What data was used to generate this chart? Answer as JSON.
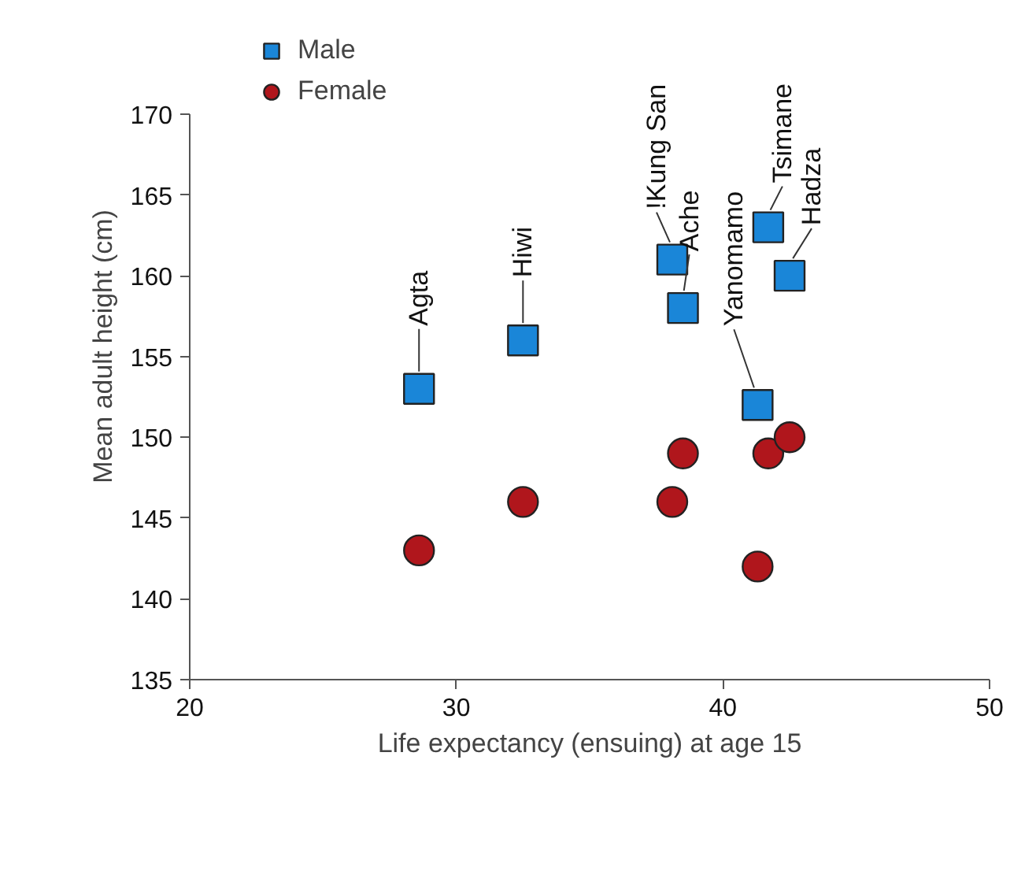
{
  "chart_data": {
    "type": "scatter",
    "xlabel": "Life expectancy (ensuing) at age 15",
    "ylabel": "Mean adult height (cm)",
    "x": [
      28.6,
      32.5,
      38.1,
      38.5,
      41.3,
      41.7,
      42.5
    ],
    "series": [
      {
        "name": "Male",
        "color": "#1a86d8",
        "marker": "square",
        "values": [
          153,
          156,
          161,
          158,
          152,
          163,
          160
        ]
      },
      {
        "name": "Female",
        "color": "#b0161c",
        "marker": "circle",
        "values": [
          143,
          146,
          146,
          149,
          142,
          149,
          150
        ]
      }
    ],
    "annotations": [
      {
        "text": "Agta",
        "x": 28.6,
        "y": 153
      },
      {
        "text": "Hiwi",
        "x": 32.5,
        "y": 156
      },
      {
        "text": "!Kung San",
        "x": 38.1,
        "y": 161
      },
      {
        "text": "Ache",
        "x": 38.5,
        "y": 158
      },
      {
        "text": "Yanomamo",
        "x": 41.3,
        "y": 152
      },
      {
        "text": "Tsimane",
        "x": 41.7,
        "y": 163
      },
      {
        "text": "Hadza",
        "x": 42.5,
        "y": 160
      }
    ],
    "xlim": [
      20,
      50
    ],
    "xticks": [
      20,
      30,
      40,
      50
    ],
    "ylim": [
      135,
      170
    ],
    "yticks": [
      135,
      140,
      145,
      150,
      155,
      160,
      165,
      170
    ],
    "grid": false,
    "legend": "top left"
  }
}
